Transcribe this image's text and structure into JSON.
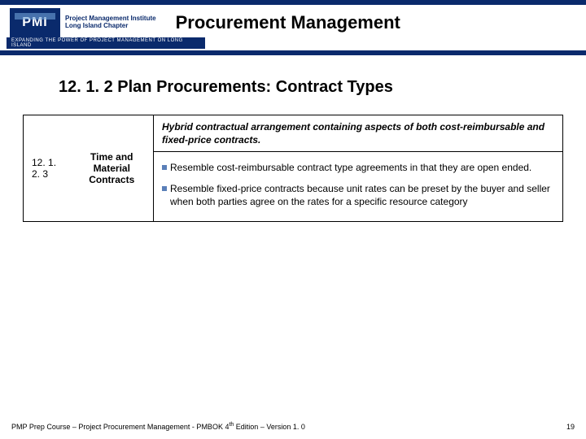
{
  "colors": {
    "brand_navy": "#0a2a6c",
    "bullet": "#5a7fb8",
    "background": "#ffffff",
    "text": "#000000"
  },
  "header": {
    "logo_text": "PMI",
    "logo_side_line1": "Project Management Institute",
    "logo_side_line2": "Long Island Chapter",
    "tagline": "EXPANDING THE POWER OF PROJECT MANAGEMENT ON LONG ISLAND",
    "title": "Procurement Management"
  },
  "content": {
    "heading": "12. 1. 2 Plan Procurements:  Contract Types",
    "table": {
      "row_number": "12. 1. 2. 3",
      "row_name": "Time and Material Contracts",
      "description_heading": "Hybrid contractual arrangement containing aspects of both cost-reimbursable and fixed-price contracts.",
      "bullets": [
        "Resemble cost-reimbursable contract type agreements in that they are open ended.",
        "Resemble fixed-price contracts because unit rates can be preset by the buyer and seller when both parties agree on the rates for a specific resource category"
      ]
    }
  },
  "footer": {
    "left_a": "PMP Prep Course – Project Procurement Management - PMBOK 4",
    "left_sup": "th",
    "left_b": " Edition – Version 1. 0",
    "page_number": "19"
  }
}
